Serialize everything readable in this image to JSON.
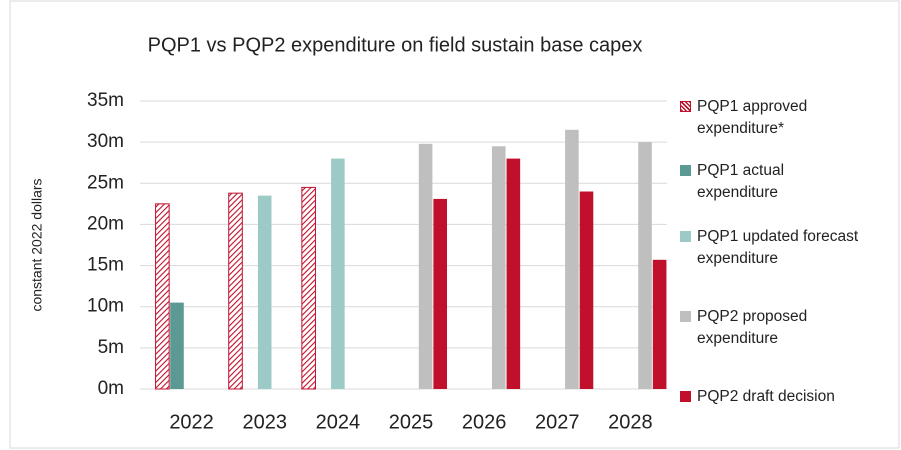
{
  "chart_data": {
    "type": "bar",
    "title": "PQP1 vs PQP2 expenditure on field sustain base capex",
    "y_label": "constant 2022 dollars",
    "categories": [
      "2022",
      "2023",
      "2024",
      "2025",
      "2026",
      "2027",
      "2028"
    ],
    "series": [
      {
        "name": "PQP1 approved expenditure*",
        "color": "#c0102c",
        "pattern": "hatch",
        "values": [
          22.5,
          23.8,
          24.5,
          null,
          null,
          null,
          null
        ]
      },
      {
        "name": "PQP1 actual expenditure",
        "color": "#5b9a94",
        "values": [
          10.5,
          null,
          null,
          null,
          null,
          null,
          null
        ]
      },
      {
        "name": "PQP1 updated forecast expenditure",
        "color": "#9ccac6",
        "values": [
          null,
          23.5,
          28,
          null,
          null,
          null,
          null
        ]
      },
      {
        "name": "PQP2 proposed expenditure",
        "color": "#bfbfbf",
        "values": [
          null,
          null,
          null,
          29.8,
          29.5,
          31.5,
          30
        ]
      },
      {
        "name": "PQP2 draft decision",
        "color": "#c0102c",
        "values": [
          null,
          null,
          null,
          23.1,
          28,
          24,
          15.7
        ]
      }
    ],
    "ylim": [
      0,
      35
    ],
    "yticks": [
      {
        "value": 0,
        "label": "0m"
      },
      {
        "value": 5,
        "label": "5m"
      },
      {
        "value": 10,
        "label": "10m"
      },
      {
        "value": 15,
        "label": "15m"
      },
      {
        "value": 20,
        "label": "20m"
      },
      {
        "value": 25,
        "label": "25m"
      },
      {
        "value": 30,
        "label": "30m"
      },
      {
        "value": 35,
        "label": "35m"
      }
    ],
    "grid": true,
    "legend": "right"
  }
}
